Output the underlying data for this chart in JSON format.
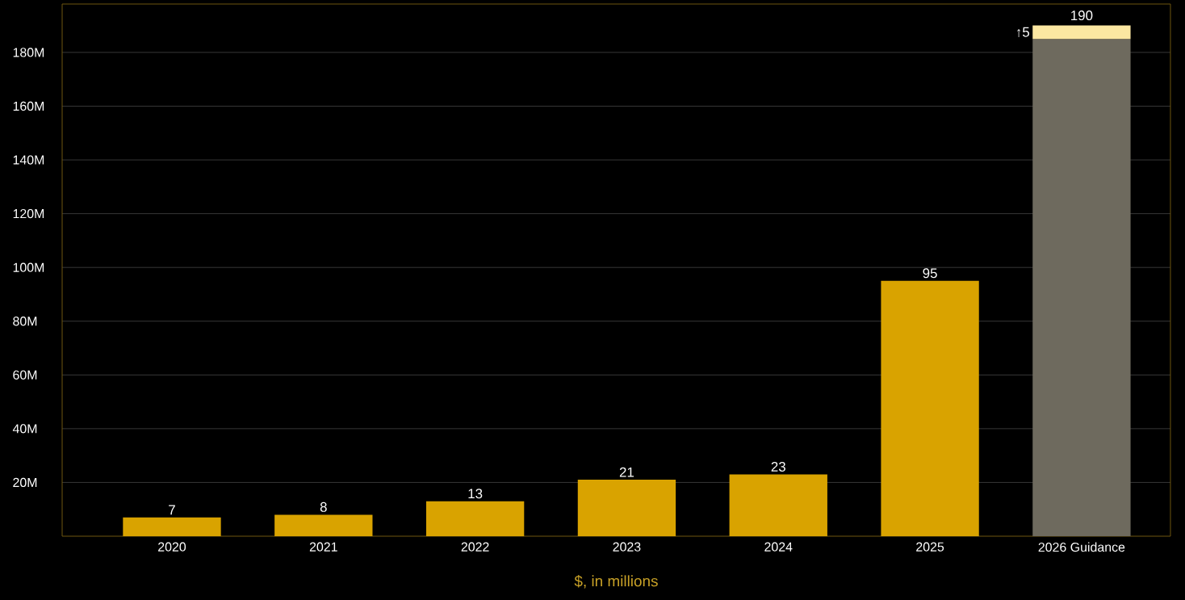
{
  "chart_data": {
    "type": "bar",
    "stacked": true,
    "xlabel": "$, in millions",
    "categories": [
      "2020",
      "2021",
      "2022",
      "2023",
      "2024",
      "2025",
      "2026 Guidance"
    ],
    "series": [
      {
        "colors": [
          "#d9a300",
          "#d9a300",
          "#d9a300",
          "#d9a300",
          "#d9a300",
          "#d9a300",
          "#6e6a5e"
        ],
        "values": [
          7,
          8,
          13,
          21,
          23,
          95,
          185
        ],
        "value_labels": [
          "7",
          "8",
          "13",
          "21",
          "23",
          "95",
          null
        ]
      },
      {
        "color": "#fbe7a1",
        "values": [
          null,
          null,
          null,
          null,
          null,
          null,
          5
        ],
        "value_labels": [
          null,
          null,
          null,
          null,
          null,
          null,
          "↑5"
        ]
      }
    ],
    "totals": [
      null,
      null,
      null,
      null,
      null,
      null,
      "190"
    ],
    "ylim": [
      0,
      198
    ],
    "yticks": [
      {
        "value": 20,
        "label": "20M"
      },
      {
        "value": 40,
        "label": "40M"
      },
      {
        "value": 60,
        "label": "60M"
      },
      {
        "value": 80,
        "label": "80M"
      },
      {
        "value": 100,
        "label": "100M"
      },
      {
        "value": 120,
        "label": "120M"
      },
      {
        "value": 140,
        "label": "140M"
      },
      {
        "value": 160,
        "label": "160M"
      },
      {
        "value": 180,
        "label": "180M"
      }
    ],
    "grid": "y"
  }
}
